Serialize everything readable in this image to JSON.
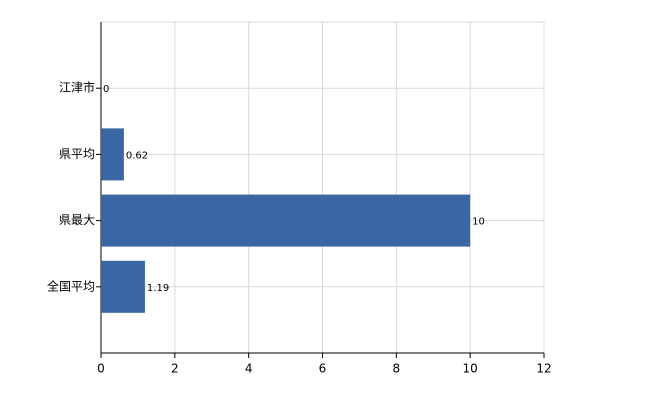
{
  "chart_data": {
    "type": "bar",
    "orientation": "horizontal",
    "categories": [
      "江津市",
      "県平均",
      "県最大",
      "全国平均"
    ],
    "values": [
      0,
      0.62,
      10,
      1.19
    ],
    "color": "#3a66a3",
    "xlim": [
      0,
      12
    ],
    "xticks": [
      0,
      2,
      4,
      6,
      8,
      10,
      12
    ],
    "grid": true
  }
}
